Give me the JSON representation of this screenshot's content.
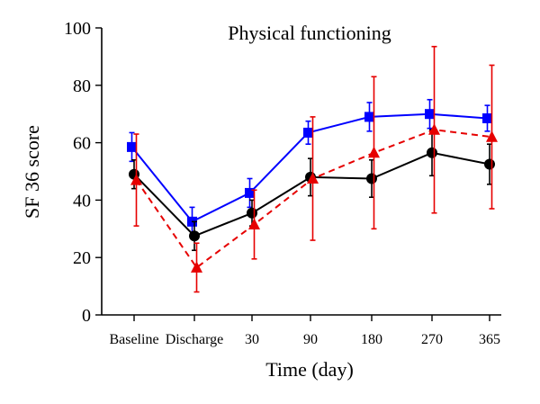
{
  "chart_data": {
    "type": "line",
    "title": "Physical functioning",
    "xlabel": "Time (day)",
    "ylabel": "SF 36 score",
    "categories": [
      "Baseline",
      "Discharge",
      "30",
      "90",
      "180",
      "270",
      "365"
    ],
    "ylim": [
      0,
      100
    ],
    "yticks": [
      0,
      20,
      40,
      60,
      80,
      100
    ],
    "grid": false,
    "legend": "none",
    "series": [
      {
        "color": "#0000ff",
        "marker": "square",
        "line_style": "solid",
        "values": [
          58.5,
          32.5,
          42.5,
          63.5,
          69,
          70,
          68.5
        ],
        "error": [
          5,
          5,
          5,
          4,
          5,
          5,
          4.5
        ]
      },
      {
        "color": "#000000",
        "marker": "circle",
        "line_style": "solid",
        "values": [
          49,
          27.5,
          35.5,
          48,
          47.5,
          56.5,
          52.5
        ],
        "error": [
          5,
          5,
          4.5,
          6.5,
          6.5,
          8,
          7
        ]
      },
      {
        "color": "#e60000",
        "marker": "triangle",
        "line_style": "dashed",
        "values": [
          47,
          16.5,
          31.5,
          47.5,
          56.5,
          64.5,
          62
        ],
        "error": [
          16,
          8.5,
          12,
          21.5,
          26.5,
          29,
          25
        ]
      }
    ]
  }
}
